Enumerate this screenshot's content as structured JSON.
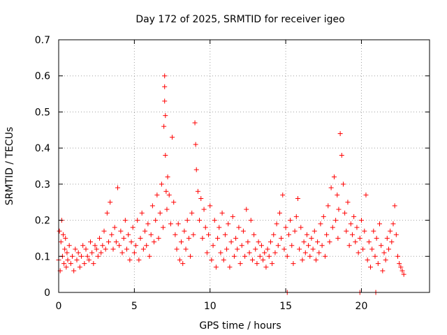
{
  "chart_data": {
    "type": "scatter",
    "title": "Day 172 of 2025, SRMTID for receiver igeo",
    "xlabel": "GPS time / hours",
    "ylabel": "SRMTID / TECUs",
    "xlim": [
      0,
      24.5
    ],
    "ylim": [
      0,
      0.7
    ],
    "xticks": [
      0,
      5,
      10,
      15,
      20
    ],
    "yticks": [
      0,
      0.1,
      0.2,
      0.3,
      0.4,
      0.5,
      0.6,
      0.7
    ],
    "xtick_labels": [
      "0",
      "5",
      "10",
      "15",
      "20"
    ],
    "ytick_labels": [
      "0",
      "0.1",
      "0.2",
      "0.3",
      "0.4",
      "0.5",
      "0.6",
      "0.7"
    ],
    "grid": true,
    "marker": "+",
    "color": "#ff0000",
    "series": [
      {
        "name": "SRMTID",
        "x": [
          0.0,
          0.05,
          0.1,
          0.15,
          0.2,
          0.25,
          0.3,
          0.35,
          0.4,
          0.45,
          0.5,
          0.55,
          0.6,
          0.7,
          0.8,
          0.9,
          1.0,
          1.1,
          1.2,
          1.3,
          1.4,
          1.5,
          1.6,
          1.7,
          1.8,
          1.9,
          2.0,
          2.1,
          2.2,
          2.3,
          2.4,
          2.5,
          2.6,
          2.7,
          2.8,
          2.9,
          3.0,
          3.1,
          3.2,
          3.3,
          3.4,
          3.5,
          3.6,
          3.7,
          3.8,
          3.9,
          4.0,
          4.1,
          4.2,
          4.3,
          4.4,
          4.5,
          4.6,
          4.7,
          4.8,
          4.9,
          5.0,
          5.1,
          5.2,
          5.3,
          5.4,
          5.5,
          5.6,
          5.7,
          5.8,
          5.9,
          6.0,
          6.1,
          6.2,
          6.3,
          6.4,
          6.5,
          6.6,
          6.7,
          6.8,
          6.9,
          6.95,
          7.0,
          7.0,
          7.0,
          7.05,
          7.05,
          7.1,
          7.15,
          7.2,
          7.3,
          7.4,
          7.5,
          7.6,
          7.7,
          7.8,
          7.9,
          8.0,
          8.1,
          8.2,
          8.3,
          8.4,
          8.5,
          8.6,
          8.7,
          8.8,
          8.9,
          9.0,
          9.05,
          9.1,
          9.2,
          9.3,
          9.4,
          9.5,
          9.6,
          9.7,
          9.8,
          9.9,
          10.0,
          10.1,
          10.2,
          10.3,
          10.4,
          10.5,
          10.6,
          10.7,
          10.8,
          10.9,
          11.0,
          11.1,
          11.2,
          11.3,
          11.4,
          11.5,
          11.6,
          11.7,
          11.8,
          11.9,
          12.0,
          12.1,
          12.2,
          12.3,
          12.4,
          12.5,
          12.6,
          12.7,
          12.8,
          12.9,
          13.0,
          13.1,
          13.2,
          13.3,
          13.4,
          13.5,
          13.6,
          13.7,
          13.8,
          13.9,
          14.0,
          14.1,
          14.2,
          14.3,
          14.4,
          14.5,
          14.6,
          14.7,
          14.8,
          14.9,
          15.0,
          15.1,
          15.2,
          15.3,
          15.4,
          15.5,
          15.6,
          15.7,
          15.8,
          15.9,
          16.0,
          16.1,
          16.2,
          16.3,
          16.4,
          16.5,
          16.6,
          16.7,
          16.8,
          16.9,
          17.0,
          17.1,
          17.2,
          17.3,
          17.4,
          17.5,
          17.6,
          17.7,
          17.8,
          17.9,
          18.0,
          18.1,
          18.2,
          18.3,
          18.4,
          18.45,
          18.5,
          18.6,
          18.7,
          18.8,
          18.9,
          19.0,
          19.1,
          19.2,
          19.3,
          19.4,
          19.5,
          19.6,
          19.7,
          19.8,
          19.9,
          20.0,
          20.1,
          20.2,
          20.3,
          20.4,
          20.5,
          20.6,
          20.7,
          20.8,
          20.9,
          21.0,
          21.1,
          21.2,
          21.3,
          21.4,
          21.5,
          21.6,
          21.7,
          21.8,
          21.9,
          22.0,
          22.1,
          22.2,
          22.3,
          22.4,
          22.5,
          22.6,
          22.7,
          22.8,
          15.1,
          19.9,
          20.95
        ],
        "y": [
          0.09,
          0.17,
          0.06,
          0.14,
          0.2,
          0.1,
          0.16,
          0.08,
          0.12,
          0.15,
          0.07,
          0.11,
          0.09,
          0.13,
          0.08,
          0.1,
          0.06,
          0.12,
          0.09,
          0.11,
          0.07,
          0.1,
          0.13,
          0.08,
          0.12,
          0.1,
          0.09,
          0.14,
          0.11,
          0.08,
          0.13,
          0.12,
          0.1,
          0.15,
          0.11,
          0.13,
          0.17,
          0.12,
          0.22,
          0.14,
          0.25,
          0.16,
          0.12,
          0.18,
          0.14,
          0.29,
          0.13,
          0.17,
          0.11,
          0.15,
          0.2,
          0.12,
          0.16,
          0.09,
          0.14,
          0.18,
          0.11,
          0.13,
          0.2,
          0.09,
          0.15,
          0.22,
          0.12,
          0.17,
          0.13,
          0.19,
          0.1,
          0.16,
          0.24,
          0.14,
          0.2,
          0.27,
          0.15,
          0.22,
          0.3,
          0.18,
          0.46,
          0.6,
          0.57,
          0.53,
          0.49,
          0.38,
          0.28,
          0.23,
          0.32,
          0.27,
          0.19,
          0.43,
          0.25,
          0.16,
          0.12,
          0.19,
          0.09,
          0.14,
          0.08,
          0.17,
          0.12,
          0.2,
          0.15,
          0.1,
          0.22,
          0.16,
          0.47,
          0.41,
          0.34,
          0.28,
          0.2,
          0.26,
          0.15,
          0.23,
          0.18,
          0.11,
          0.16,
          0.24,
          0.09,
          0.13,
          0.2,
          0.07,
          0.15,
          0.18,
          0.11,
          0.22,
          0.09,
          0.16,
          0.12,
          0.19,
          0.07,
          0.14,
          0.21,
          0.1,
          0.15,
          0.12,
          0.18,
          0.08,
          0.13,
          0.17,
          0.1,
          0.23,
          0.14,
          0.11,
          0.2,
          0.09,
          0.16,
          0.12,
          0.08,
          0.14,
          0.1,
          0.13,
          0.09,
          0.11,
          0.07,
          0.12,
          0.1,
          0.14,
          0.08,
          0.16,
          0.11,
          0.19,
          0.13,
          0.22,
          0.15,
          0.27,
          0.12,
          0.18,
          0.1,
          0.16,
          0.2,
          0.13,
          0.08,
          0.17,
          0.21,
          0.26,
          0.12,
          0.18,
          0.09,
          0.14,
          0.11,
          0.16,
          0.13,
          0.1,
          0.15,
          0.12,
          0.17,
          0.09,
          0.14,
          0.11,
          0.19,
          0.13,
          0.21,
          0.1,
          0.16,
          0.24,
          0.14,
          0.29,
          0.18,
          0.32,
          0.2,
          0.27,
          0.15,
          0.23,
          0.44,
          0.38,
          0.3,
          0.22,
          0.17,
          0.25,
          0.13,
          0.19,
          0.16,
          0.21,
          0.14,
          0.18,
          0.11,
          0.15,
          0.2,
          0.12,
          0.17,
          0.27,
          0.09,
          0.14,
          0.07,
          0.12,
          0.17,
          0.1,
          0.15,
          0.08,
          0.19,
          0.13,
          0.06,
          0.11,
          0.09,
          0.15,
          0.12,
          0.17,
          0.14,
          0.19,
          0.24,
          0.16,
          0.1,
          0.08,
          0.07,
          0.06,
          0.05,
          0.0,
          0.0,
          0.0
        ]
      }
    ]
  }
}
